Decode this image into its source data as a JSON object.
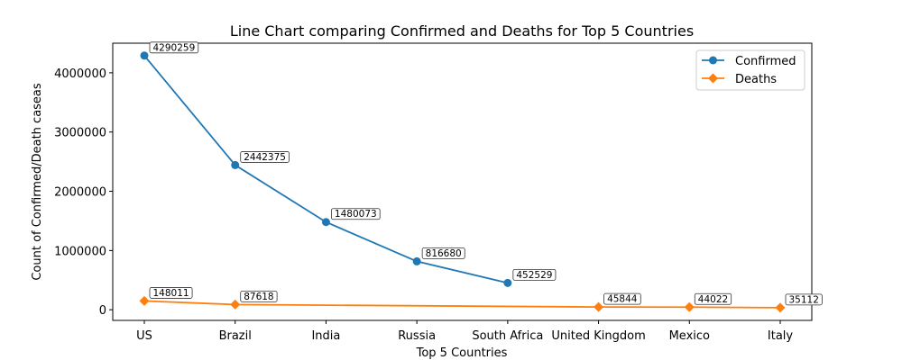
{
  "chart_data": {
    "type": "line",
    "title": "Line Chart comparing Confirmed and Deaths for Top 5 Countries",
    "xlabel": "Top 5 Countries",
    "ylabel": "Count of Confirmed/Death caseas",
    "categories": [
      "US",
      "Brazil",
      "India",
      "Russia",
      "South Africa",
      "United Kingdom",
      "Mexico",
      "Italy"
    ],
    "yticks": [
      0,
      1000000,
      2000000,
      3000000,
      4000000
    ],
    "ytick_labels": [
      "0",
      "1000000",
      "2000000",
      "3000000",
      "4000000"
    ],
    "ylim": [
      -180000,
      4500000
    ],
    "grid": false,
    "legend_position": "top-right",
    "series": [
      {
        "name": "Confirmed",
        "color": "#1f77b4",
        "marker": "circle",
        "x": [
          "US",
          "Brazil",
          "India",
          "Russia",
          "South Africa"
        ],
        "values": [
          4290259,
          2442375,
          1480073,
          816680,
          452529
        ],
        "labels": [
          "4290259",
          "2442375",
          "1480073",
          "816680",
          "452529"
        ]
      },
      {
        "name": "Deaths",
        "color": "#ff7f0e",
        "marker": "diamond",
        "x": [
          "US",
          "Brazil",
          "United Kingdom",
          "Mexico",
          "Italy"
        ],
        "values": [
          148011,
          87618,
          45844,
          44022,
          35112
        ],
        "labels": [
          "148011",
          "87618",
          "45844",
          "44022",
          "35112"
        ]
      }
    ]
  }
}
